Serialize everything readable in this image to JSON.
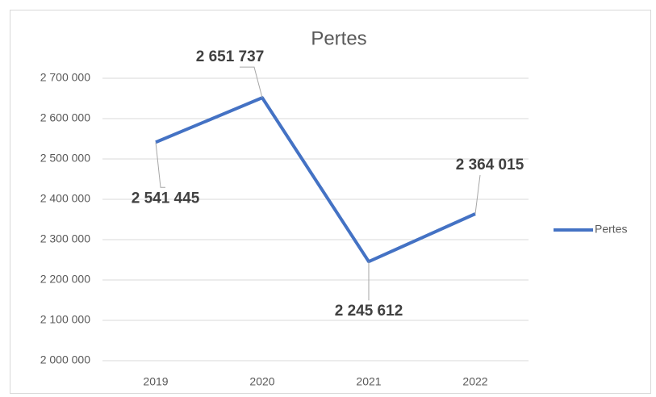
{
  "chart_data": {
    "type": "line",
    "title": "Pertes",
    "categories": [
      "2019",
      "2020",
      "2021",
      "2022"
    ],
    "series": [
      {
        "name": "Pertes",
        "color": "#4472c4",
        "values": [
          2541445,
          2651737,
          2245612,
          2364015
        ],
        "value_labels": [
          "2 541 445",
          "2 651 737",
          "2 245 612",
          "2 364 015"
        ]
      }
    ],
    "ylim": [
      2000000,
      2700000
    ],
    "yticks": [
      {
        "value": 2000000,
        "label": "2 000 000"
      },
      {
        "value": 2100000,
        "label": "2 100 000"
      },
      {
        "value": 2200000,
        "label": "2 200 000"
      },
      {
        "value": 2300000,
        "label": "2 300 000"
      },
      {
        "value": 2400000,
        "label": "2 400 000"
      },
      {
        "value": 2500000,
        "label": "2 500 000"
      },
      {
        "value": 2600000,
        "label": "2 600 000"
      },
      {
        "value": 2700000,
        "label": "2 700 000"
      }
    ],
    "grid": true,
    "legend": "right"
  }
}
